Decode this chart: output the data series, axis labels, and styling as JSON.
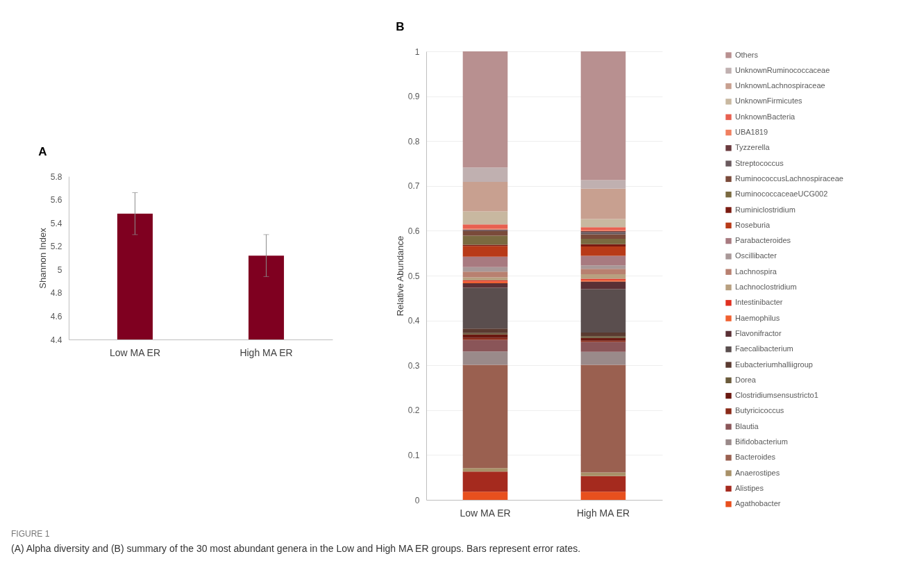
{
  "chart_data": [
    {
      "type": "bar",
      "title": "A",
      "ylabel": "Shannon Index",
      "categories": [
        "Low MA ER",
        "High MA ER"
      ],
      "values": [
        5.48,
        5.12
      ],
      "errors": [
        0.18,
        0.18
      ],
      "color": "#7f0020",
      "ylim": [
        4.4,
        5.8
      ],
      "yticks": [
        4.4,
        4.6,
        4.8,
        5,
        5.2,
        5.4,
        5.6,
        5.8
      ]
    },
    {
      "type": "bar",
      "title": "B",
      "ylabel": "Relative Abundance",
      "categories": [
        "Low MA ER",
        "High MA ER"
      ],
      "stacked": true,
      "ylim": [
        0,
        1
      ],
      "yticks": [
        0,
        0.1,
        0.2,
        0.3,
        0.4,
        0.5,
        0.6,
        0.7,
        0.8,
        0.9,
        1
      ],
      "grid": "y",
      "legend": "right",
      "annotations": [
        "FIGURE 1",
        "(A) Alpha diversity and (B) summary of the 30 most abundant genera in the Low and High MA ER groups. Bars represent error rates."
      ],
      "series": [
        {
          "name": "Agathobacter",
          "color": "#e8501e",
          "values": [
            0.018,
            0.018
          ]
        },
        {
          "name": "Alistipes",
          "color": "#a52a1e",
          "values": [
            0.045,
            0.035
          ]
        },
        {
          "name": "Anaerostipes",
          "color": "#a89168",
          "values": [
            0.008,
            0.008
          ]
        },
        {
          "name": "Bacteroides",
          "color": "#9a6050",
          "values": [
            0.23,
            0.24
          ]
        },
        {
          "name": "Bifidobacterium",
          "color": "#9a8a8a",
          "values": [
            0.03,
            0.029
          ]
        },
        {
          "name": "Blautia",
          "color": "#8a5558",
          "values": [
            0.026,
            0.022
          ]
        },
        {
          "name": "Butyricicoccus",
          "color": "#8a2a18",
          "values": [
            0.004,
            0.003
          ]
        },
        {
          "name": "Clostridiumsensustricto1",
          "color": "#6a1810",
          "values": [
            0.008,
            0.006
          ]
        },
        {
          "name": "Dorea",
          "color": "#6a5a3a",
          "values": [
            0.003,
            0.004
          ]
        },
        {
          "name": "Eubacteriumhalliigroup",
          "color": "#5a3a30",
          "values": [
            0.01,
            0.008
          ]
        },
        {
          "name": "Faecalibacterium",
          "color": "#5a4e4e",
          "values": [
            0.091,
            0.097
          ]
        },
        {
          "name": "Flavonifractor",
          "color": "#5a3035",
          "values": [
            0.01,
            0.017
          ]
        },
        {
          "name": "Haemophilus",
          "color": "#f06030",
          "values": [
            0.004,
            0.003
          ]
        },
        {
          "name": "Intestinibacter",
          "color": "#e03020",
          "values": [
            0.002,
            0.003
          ]
        },
        {
          "name": "Lachnoclostridium",
          "color": "#b8a080",
          "values": [
            0.007,
            0.01
          ]
        },
        {
          "name": "Lachnospira",
          "color": "#b88070",
          "values": [
            0.013,
            0.012
          ]
        },
        {
          "name": "Oscillibacter",
          "color": "#a89898",
          "values": [
            0.01,
            0.008
          ]
        },
        {
          "name": "Parabacteroides",
          "color": "#a87a80",
          "values": [
            0.023,
            0.021
          ]
        },
        {
          "name": "Roseburia",
          "color": "#b83a18",
          "values": [
            0.024,
            0.021
          ]
        },
        {
          "name": "Ruminiclostridium",
          "color": "#7a1a10",
          "values": [
            0.003,
            0.005
          ]
        },
        {
          "name": "RuminococcaceaeUCG002",
          "color": "#7a6a40",
          "values": [
            0.02,
            0.012
          ]
        },
        {
          "name": "RuminococcusLachnospiraceae",
          "color": "#7a4a3a",
          "values": [
            0.01,
            0.01
          ]
        },
        {
          "name": "Streptococcus",
          "color": "#6a5a5e",
          "values": [
            0.002,
            0.005
          ]
        },
        {
          "name": "Tyzzerella",
          "color": "#6a3a3e",
          "values": [
            0.002,
            0.002
          ]
        },
        {
          "name": "UBA1819",
          "color": "#f08060",
          "values": [
            0.002,
            0.002
          ]
        },
        {
          "name": "UnknownBacteria",
          "color": "#e86050",
          "values": [
            0.009,
            0.007
          ]
        },
        {
          "name": "UnknownFirmicutes",
          "color": "#c8b8a0",
          "values": [
            0.029,
            0.018
          ]
        },
        {
          "name": "UnknownLachnospiraceae",
          "color": "#c8a090",
          "values": [
            0.066,
            0.068
          ]
        },
        {
          "name": "UnknownRuminococcaceae",
          "color": "#c0b0b0",
          "values": [
            0.032,
            0.019
          ]
        },
        {
          "name": "Others",
          "color": "#b89090",
          "values": [
            0.259,
            0.287
          ]
        }
      ]
    }
  ]
}
